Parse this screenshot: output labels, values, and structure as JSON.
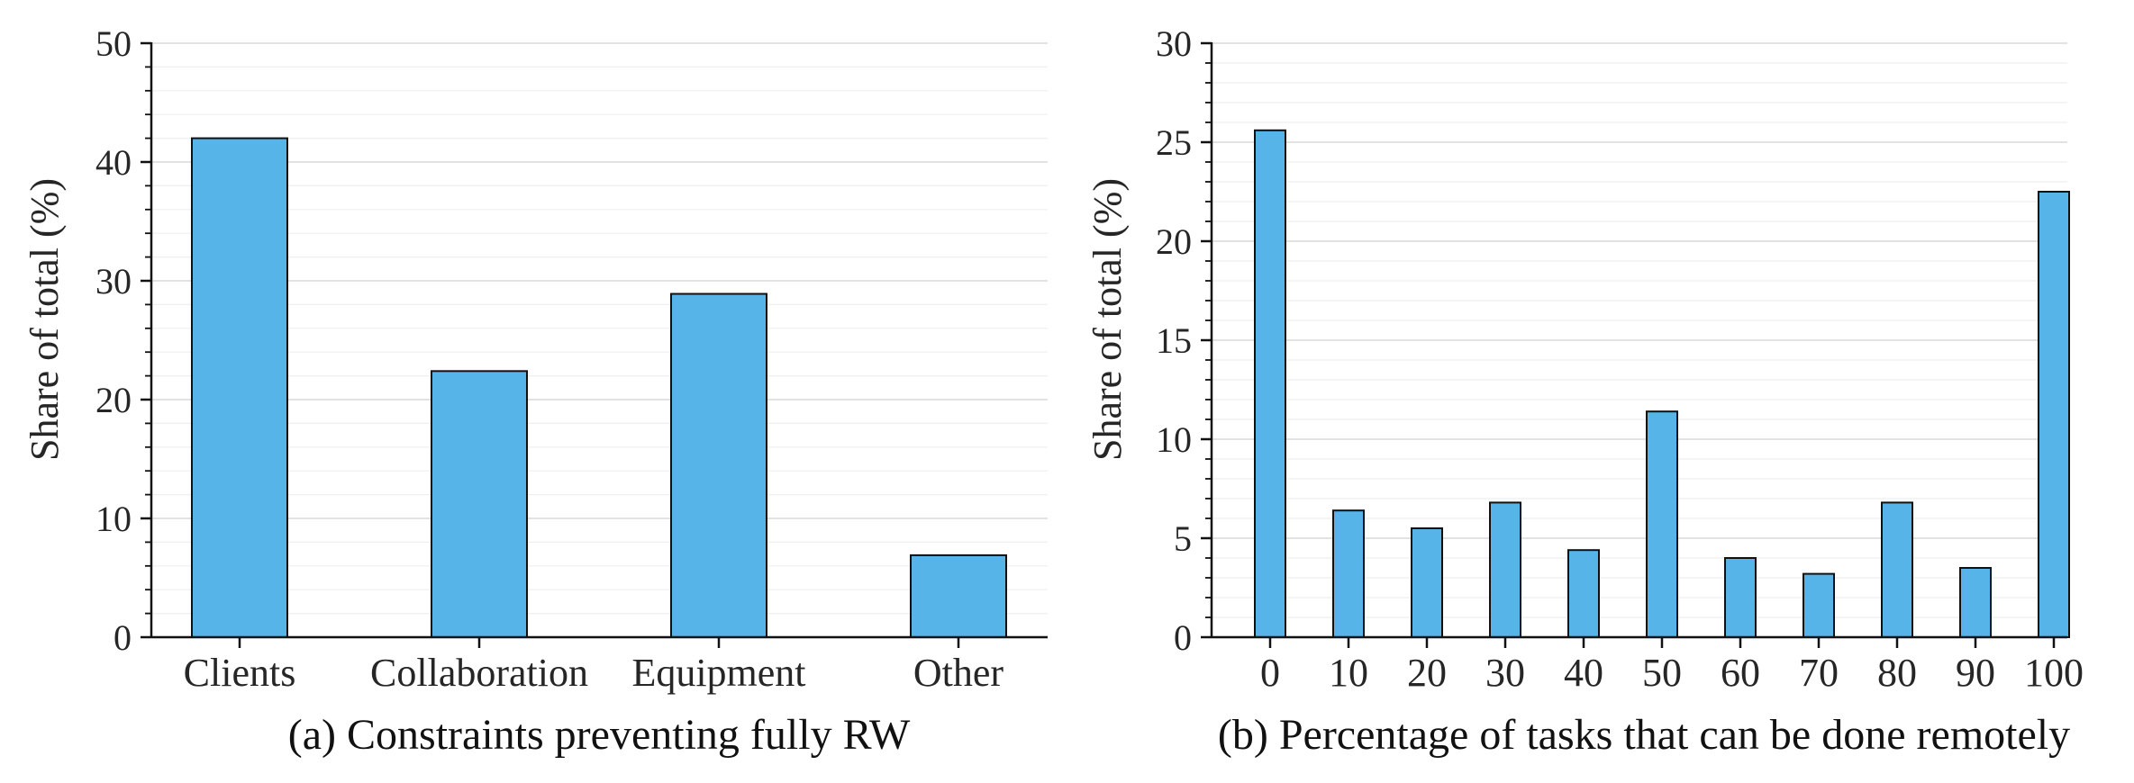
{
  "chart_data": [
    {
      "type": "bar",
      "caption": "(a) Constraints preventing fully RW",
      "ylabel": "Share of total (%)",
      "xlabel": "",
      "categories": [
        "Clients",
        "Collaboration",
        "Equipment",
        "Other"
      ],
      "values": [
        42.0,
        22.4,
        28.9,
        6.9
      ],
      "ylim": [
        0,
        50
      ],
      "yticks": [
        0,
        10,
        20,
        30,
        40,
        50
      ],
      "grid": true,
      "bar_color": "#56b4e9",
      "edge_color": "#111111"
    },
    {
      "type": "bar",
      "caption": "(b) Percentage of tasks that can be done remotely",
      "ylabel": "Share of total (%)",
      "xlabel": "",
      "categories": [
        "0",
        "10",
        "20",
        "30",
        "40",
        "50",
        "60",
        "70",
        "80",
        "90",
        "100"
      ],
      "values": [
        25.6,
        6.4,
        5.5,
        6.8,
        4.4,
        11.4,
        4.0,
        3.2,
        6.8,
        3.5,
        22.5
      ],
      "ylim": [
        0,
        30
      ],
      "yticks": [
        0,
        5,
        10,
        15,
        20,
        25,
        30
      ],
      "grid": true,
      "bar_color": "#56b4e9",
      "edge_color": "#111111"
    }
  ]
}
